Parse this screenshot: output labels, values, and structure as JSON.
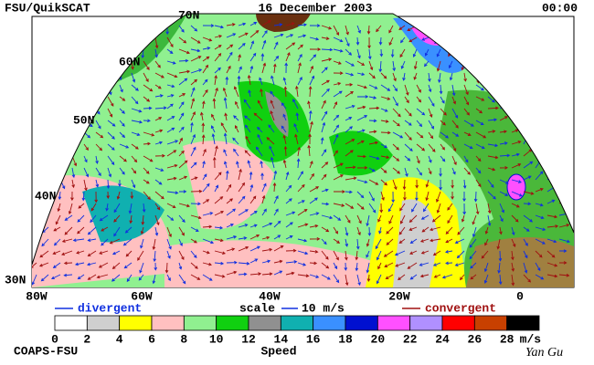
{
  "header": {
    "source": "FSU/QuikSCAT",
    "date": "16 December 2003",
    "time": "00:00"
  },
  "map": {
    "lat_labels": [
      "70N",
      "60N",
      "50N",
      "40N",
      "30N"
    ],
    "lon_labels": [
      "80W",
      "60W",
      "40W",
      "20W",
      "0"
    ]
  },
  "legend": {
    "divergent": "divergent",
    "scale": "scale",
    "scale_value": "10 m/s",
    "convergent": "convergent",
    "divergent_color": "#1030e0",
    "convergent_color": "#a01010"
  },
  "colorbar": {
    "title": "Speed",
    "unit": "m/s",
    "ticks": [
      0,
      2,
      4,
      6,
      8,
      10,
      12,
      14,
      16,
      18,
      20,
      22,
      24,
      26,
      28
    ],
    "colors": [
      "#ffffff",
      "#cfcfcf",
      "#ffff00",
      "#ffc0c0",
      "#90f090",
      "#10d010",
      "#909090",
      "#10b0b0",
      "#3a90ff",
      "#0010d0",
      "#ff50ff",
      "#b090ff",
      "#ff0000",
      "#c84000",
      "#000000"
    ]
  },
  "footer": {
    "credit": "COAPS-FSU",
    "signature": "Yan Gu"
  }
}
